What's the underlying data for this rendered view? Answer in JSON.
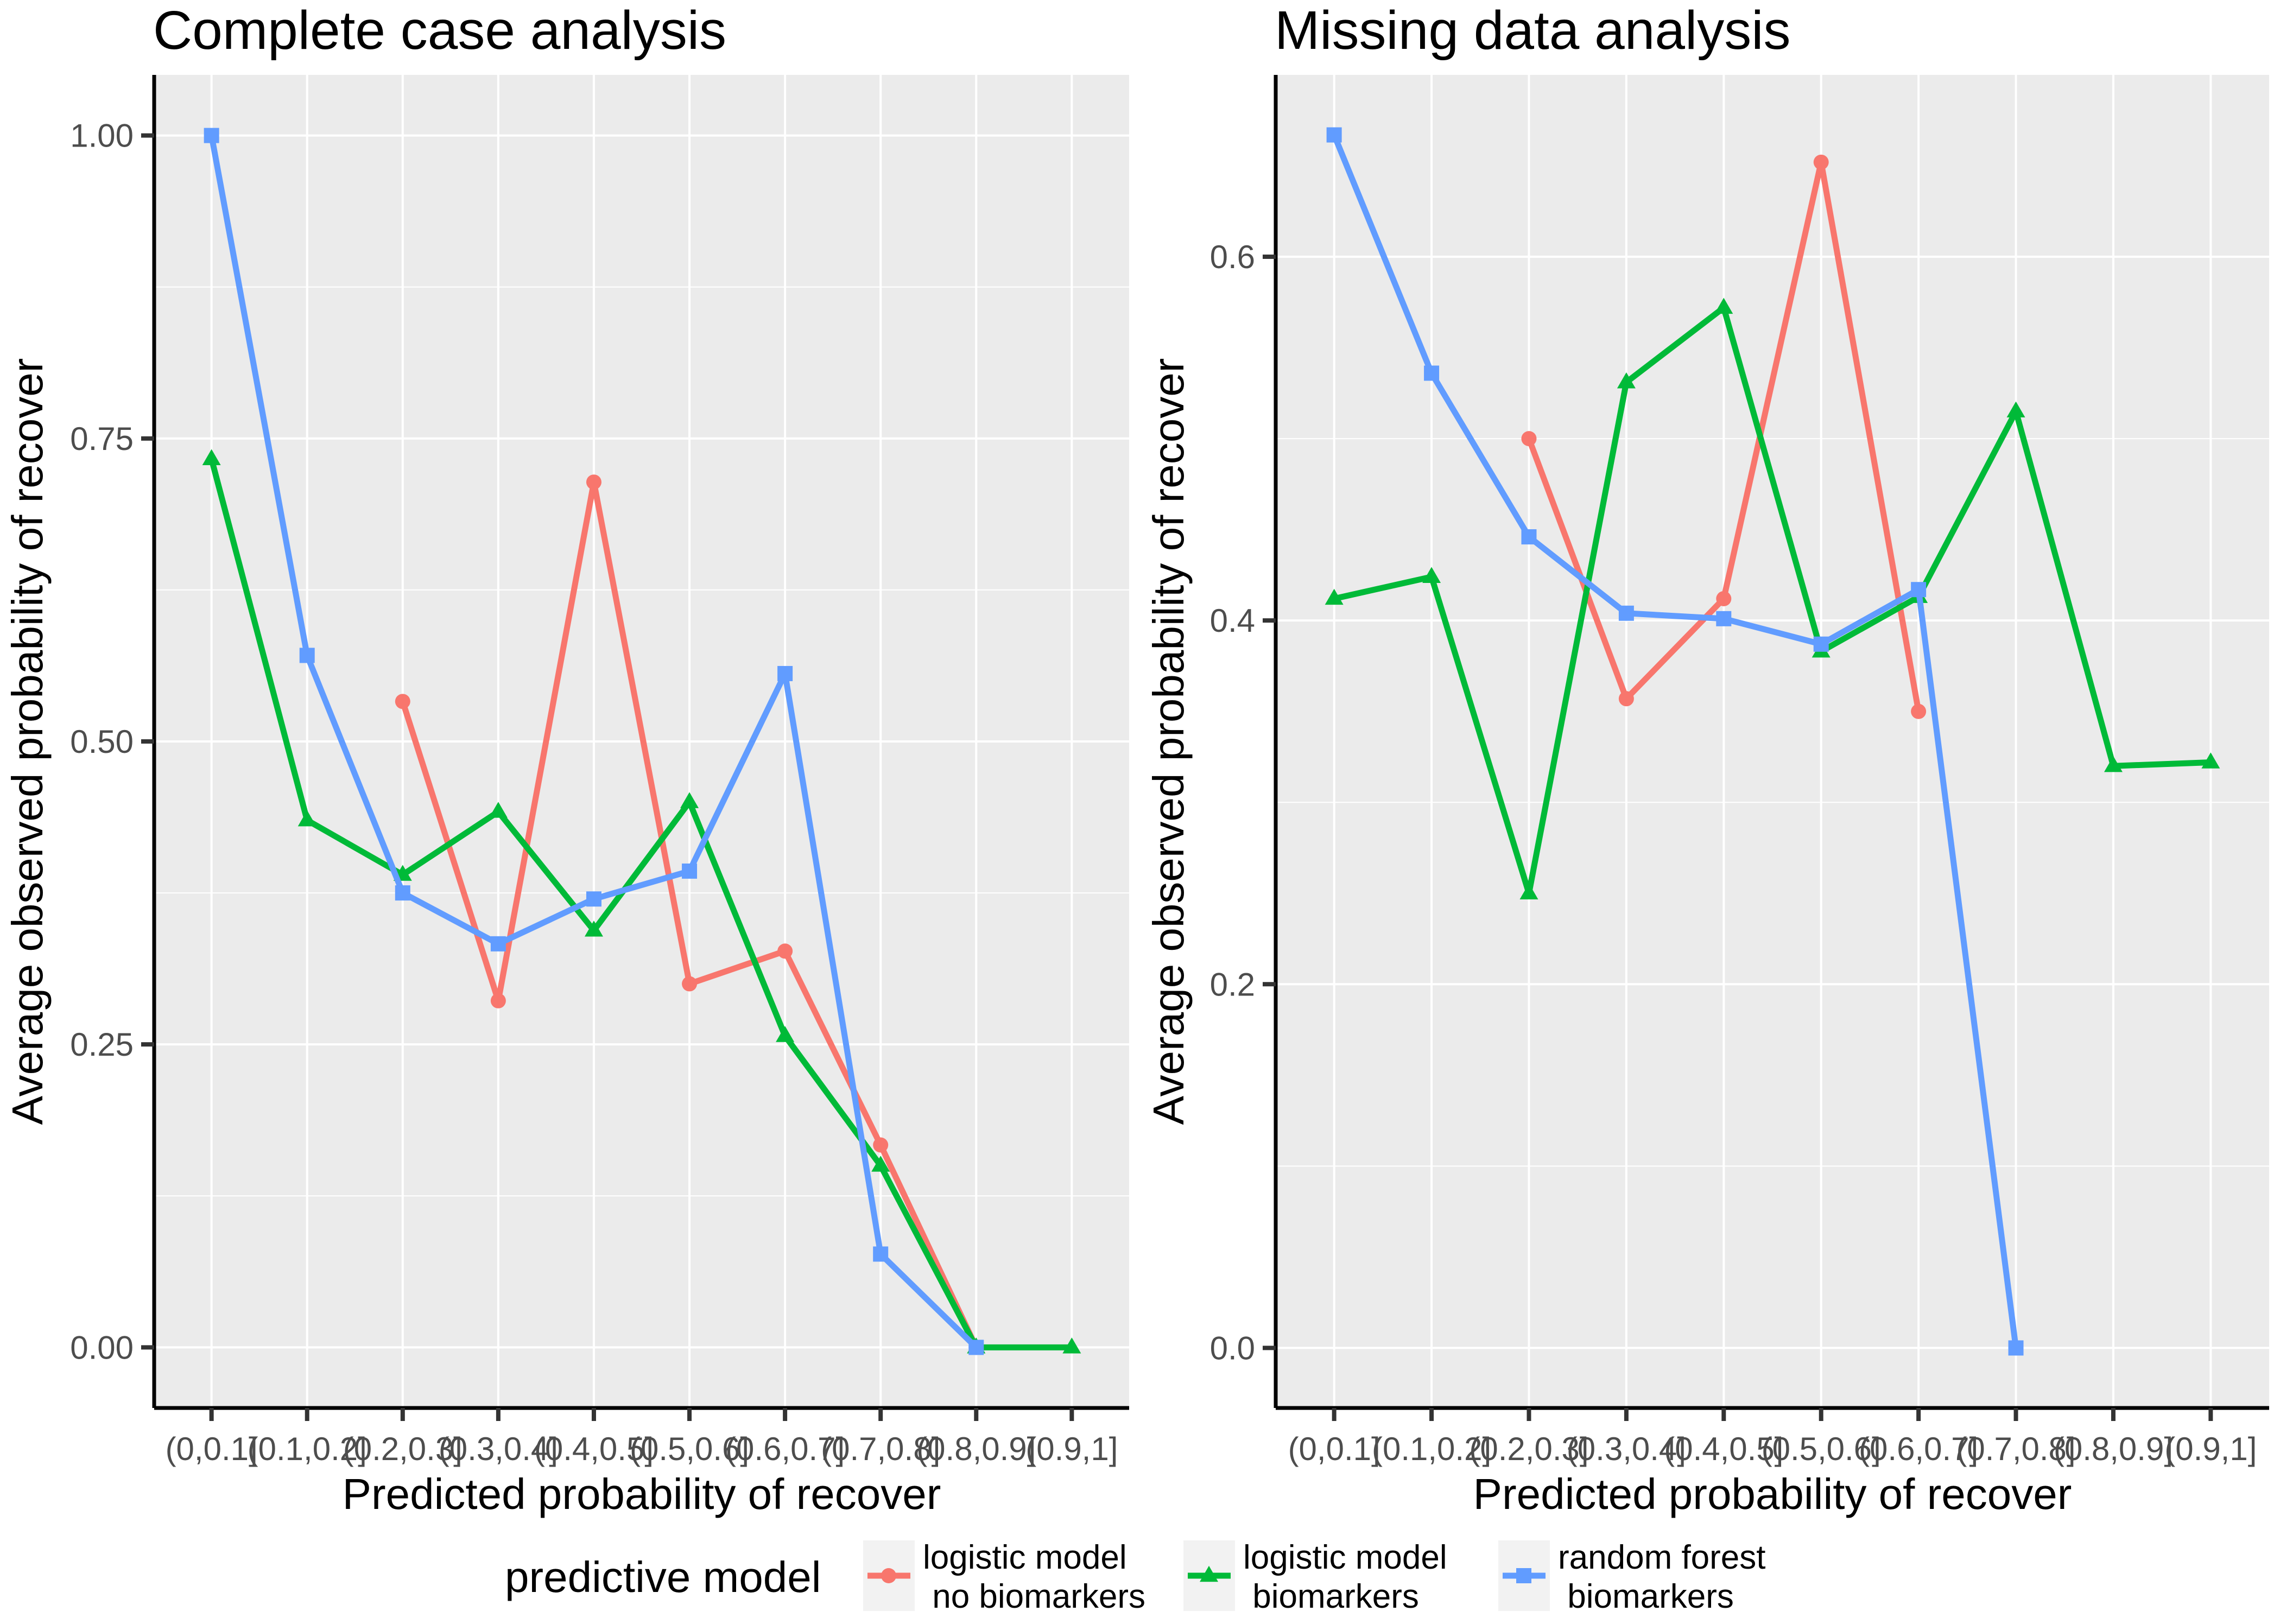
{
  "chart_data": [
    {
      "type": "line",
      "title": "Complete case analysis",
      "xlabel": "Predicted probability of recover",
      "ylabel": "Average observed probability of recover",
      "categories": [
        "(0,0.1]",
        "(0.1,0.2]",
        "(0.2,0.3]",
        "(0.3,0.4]",
        "(0.4,0.5]",
        "(0.5,0.6]",
        "(0.6,0.7]",
        "(0.7,0.8]",
        "(0.8,0.9]",
        "(0.9,1]"
      ],
      "y_ticks": [
        "0.00",
        "0.25",
        "0.50",
        "0.75",
        "1.00"
      ],
      "ylim": [
        -0.05,
        1.05
      ],
      "grid": true,
      "series": [
        {
          "name": "logistic model\n no biomarkers",
          "values": [
            null,
            null,
            0.533,
            0.286,
            0.714,
            0.3,
            0.327,
            0.167,
            0.0,
            null
          ]
        },
        {
          "name": "logistic model\n biomarkers",
          "values": [
            0.733,
            0.435,
            0.39,
            0.442,
            0.344,
            0.45,
            0.257,
            0.15,
            0.0,
            0.0
          ]
        },
        {
          "name": "random forest\n biomarkers",
          "values": [
            1.0,
            0.571,
            0.375,
            0.333,
            0.37,
            0.393,
            0.556,
            0.077,
            0.0,
            null
          ]
        }
      ]
    },
    {
      "type": "line",
      "title": "Missing data analysis",
      "xlabel": "Predicted probability of recover",
      "ylabel": "Average observed probability of recover",
      "categories": [
        "(0,0.1]",
        "(0.1,0.2]",
        "(0.2,0.3]",
        "(0.3,0.4]",
        "(0.4,0.5]",
        "(0.5,0.6]",
        "(0.6,0.7]",
        "(0.7,0.8]",
        "(0.8,0.9]",
        "(0.9,1]"
      ],
      "y_ticks": [
        "0.0",
        "0.2",
        "0.4",
        "0.6"
      ],
      "ylim": [
        -0.033,
        0.7
      ],
      "grid": true,
      "series": [
        {
          "name": "logistic model\n no biomarkers",
          "values": [
            null,
            null,
            0.5,
            0.357,
            0.412,
            0.652,
            0.35,
            null,
            null,
            null
          ]
        },
        {
          "name": "logistic model\n biomarkers",
          "values": [
            0.412,
            0.424,
            0.25,
            0.531,
            0.572,
            0.383,
            0.413,
            0.515,
            0.32,
            0.322
          ]
        },
        {
          "name": "random forest\n biomarkers",
          "values": [
            0.667,
            0.536,
            0.446,
            0.404,
            0.401,
            0.387,
            0.417,
            0.0,
            null,
            null
          ]
        }
      ]
    }
  ],
  "legend": {
    "title": "predictive model",
    "position": "bottom",
    "items": [
      {
        "label": [
          "logistic model",
          " no biomarkers"
        ],
        "color": "#F8766D",
        "shape": "circle"
      },
      {
        "label": [
          "logistic model",
          " biomarkers"
        ],
        "color": "#00BA38",
        "shape": "triangle"
      },
      {
        "label": [
          "random forest",
          " biomarkers"
        ],
        "color": "#619CFF",
        "shape": "square"
      }
    ]
  },
  "colors": {
    "panel_background": "#EBEBEB",
    "grid": "#FFFFFF",
    "axis_line": "#000000",
    "tick_text": "#4D4D4D"
  }
}
